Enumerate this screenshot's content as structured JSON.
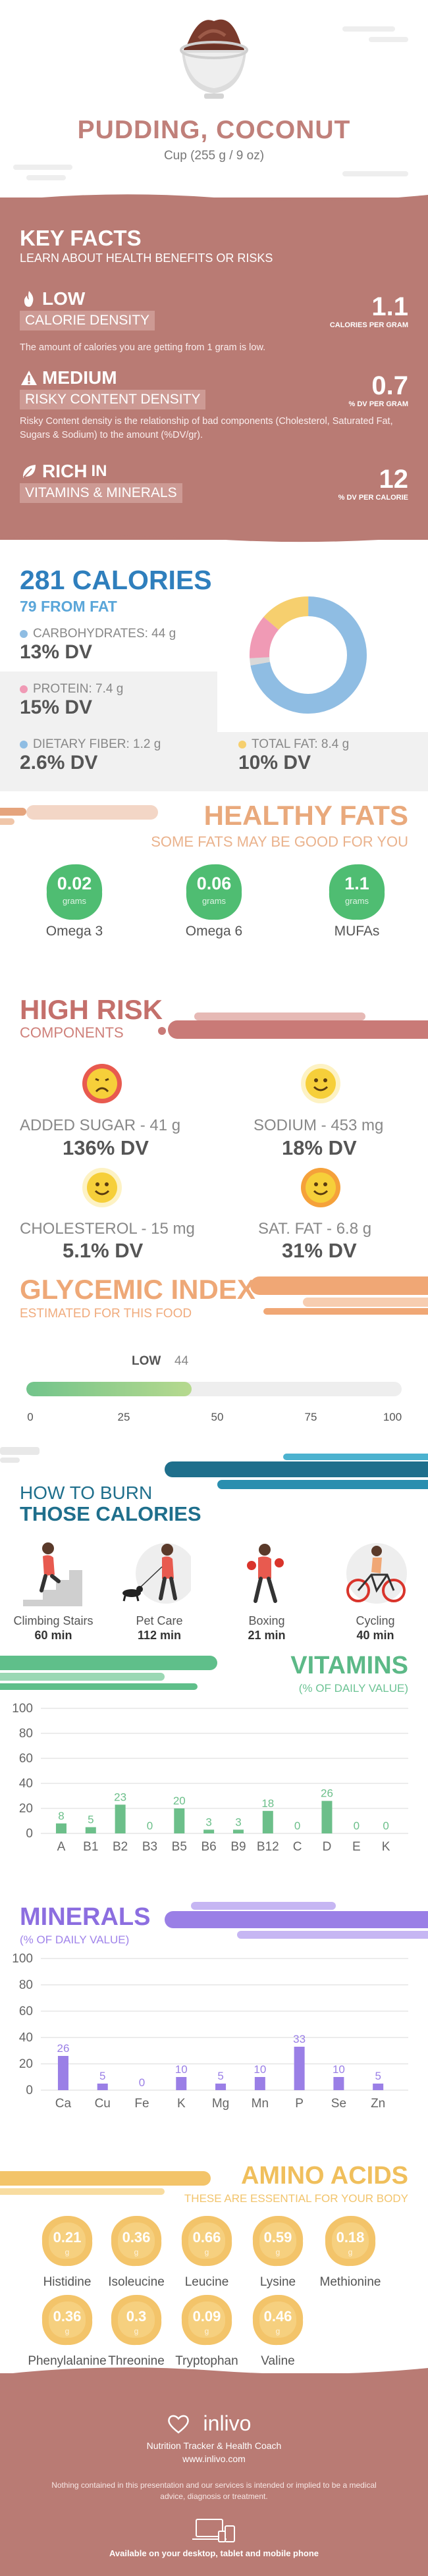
{
  "header": {
    "title": "PUDDING, COCONUT",
    "serving": "Cup (255 g / 9 oz)"
  },
  "key_facts": {
    "title": "KEY FACTS",
    "subtitle": "LEARN ABOUT HEALTH BENEFITS OR RISKS",
    "items": [
      {
        "level": "LOW",
        "label": "CALORIE DENSITY",
        "value": "1.1",
        "unit": "CALORIES PER GRAM",
        "description": "The amount of calories you are getting from 1 gram is low.",
        "icon": "flame-icon"
      },
      {
        "level": "MEDIUM",
        "label": "RISKY CONTENT DENSITY",
        "value": "0.7",
        "unit": "% DV PER GRAM",
        "description": "Risky Content density is the relationship of bad components (Cholesterol, Saturated Fat, Sugars & Sodium) to the amount (%DV/gr).",
        "icon": "warning-icon"
      },
      {
        "level": "RICH",
        "level_suffix": "IN",
        "label": "VITAMINS & MINERALS",
        "value": "12",
        "unit": "% DV PER CALORIE",
        "description": "",
        "icon": "leaf-icon"
      }
    ]
  },
  "calories": {
    "title": "281 CALORIES",
    "from_fat": "79 FROM FAT",
    "nutrients": [
      {
        "label": "CARBOHYDRATES: 44 g",
        "dv": "13% DV",
        "color": "#8fbde3"
      },
      {
        "label": "PROTEIN: 7.4 g",
        "dv": "15% DV",
        "color": "#f09ab5"
      },
      {
        "label": "DIETARY FIBER: 1.2 g",
        "dv": "2.6% DV",
        "color": "#8fbde3"
      },
      {
        "label": "TOTAL FAT: 8.4 g",
        "dv": "10% DV",
        "color": "#f6cf6e"
      }
    ],
    "donut": [
      {
        "name": "carbohydrates",
        "grams": 44,
        "color": "#8fbde3"
      },
      {
        "name": "protein",
        "grams": 7.4,
        "color": "#f09ab5"
      },
      {
        "name": "fiber",
        "grams": 1.2,
        "color": "#d9d9d9"
      },
      {
        "name": "fat",
        "grams": 8.4,
        "color": "#f6cf6e"
      }
    ]
  },
  "healthy_fats": {
    "title": "HEALTHY FATS",
    "subtitle": "SOME FATS MAY BE GOOD FOR YOU",
    "items": [
      {
        "value": "0.02",
        "unit": "grams",
        "name": "Omega 3"
      },
      {
        "value": "0.06",
        "unit": "grams",
        "name": "Omega 6"
      },
      {
        "value": "1.1",
        "unit": "grams",
        "name": "MUFAs"
      }
    ]
  },
  "high_risk": {
    "title": "HIGH RISK",
    "subtitle": "COMPONENTS",
    "items": [
      {
        "label": "ADDED SUGAR - 41 g",
        "dv": "136% DV",
        "face": "sad",
        "color": "#e85a4f"
      },
      {
        "label": "SODIUM - 453 mg",
        "dv": "18% DV",
        "face": "happy",
        "color": "#f6cf3a"
      },
      {
        "label": "CHOLESTEROL - 15 mg",
        "dv": "5.1% DV",
        "face": "happy",
        "color": "#f6cf3a"
      },
      {
        "label": "SAT. FAT - 6.8 g",
        "dv": "31% DV",
        "face": "happy",
        "color": "#f5a13a"
      }
    ]
  },
  "glycemic": {
    "title": "GLYCEMIC INDEX",
    "subtitle": "ESTIMATED FOR THIS FOOD",
    "level": "LOW",
    "value": 44,
    "value_label": "44",
    "ticks": [
      "0",
      "25",
      "50",
      "75",
      "100"
    ]
  },
  "burn": {
    "title_line1": "HOW TO BURN",
    "title_line2": "THOSE CALORIES",
    "activities": [
      {
        "name": "Climbing Stairs",
        "minutes": "60 min",
        "icon": "stairs-climber-icon"
      },
      {
        "name": "Pet Care",
        "minutes": "112 min",
        "icon": "dog-walker-icon"
      },
      {
        "name": "Boxing",
        "minutes": "21 min",
        "icon": "boxer-icon"
      },
      {
        "name": "Cycling",
        "minutes": "40 min",
        "icon": "cyclist-icon"
      }
    ]
  },
  "vitamins": {
    "title": "VITAMINS",
    "subtitle": "(% OF DAILY VALUE)",
    "color": "#6cbf8a"
  },
  "minerals": {
    "title": "MINERALS",
    "subtitle": "(% OF DAILY VALUE)",
    "color": "#9a7fe6"
  },
  "chart_data": [
    {
      "type": "bar",
      "title": "VITAMINS",
      "categories": [
        "A",
        "B1",
        "B2",
        "B3",
        "B5",
        "B6",
        "B9",
        "B12",
        "C",
        "D",
        "E",
        "K"
      ],
      "values": [
        8,
        5,
        23,
        0,
        20,
        3,
        3,
        18,
        0,
        26,
        0,
        0
      ],
      "ylim": [
        0,
        100
      ],
      "yticks": [
        "0",
        "20",
        "40",
        "60",
        "80",
        "100"
      ],
      "grid": true
    },
    {
      "type": "bar",
      "title": "MINERALS",
      "categories": [
        "Ca",
        "Cu",
        "Fe",
        "K",
        "Mg",
        "Mn",
        "P",
        "Se",
        "Zn"
      ],
      "values": [
        26,
        5,
        0,
        10,
        5,
        10,
        33,
        10,
        5
      ],
      "ylim": [
        0,
        100
      ],
      "yticks": [
        "0",
        "20",
        "40",
        "60",
        "80",
        "100"
      ],
      "grid": true
    }
  ],
  "amino_acids": {
    "title": "AMINO ACIDS",
    "subtitle": "THESE ARE ESSENTIAL FOR YOUR BODY",
    "unit": "g",
    "items": [
      {
        "name": "Histidine",
        "value": "0.21"
      },
      {
        "name": "Isoleucine",
        "value": "0.36"
      },
      {
        "name": "Leucine",
        "value": "0.66"
      },
      {
        "name": "Lysine",
        "value": "0.59"
      },
      {
        "name": "Methionine",
        "value": "0.18"
      },
      {
        "name": "Phenylalanine",
        "value": "0.36"
      },
      {
        "name": "Threonine",
        "value": "0.3"
      },
      {
        "name": "Tryptophan",
        "value": "0.09"
      },
      {
        "name": "Valine",
        "value": "0.46"
      }
    ]
  },
  "footer": {
    "brand": "inlivo",
    "tagline": "Nutrition Tracker & Health Coach",
    "url": "www.inlivo.com",
    "disclaimer": "Nothing contained in this presentation and our services is intended or implied to be a medical advice, diagnosis or treatment.",
    "available": "Available on your desktop, tablet and mobile phone"
  }
}
